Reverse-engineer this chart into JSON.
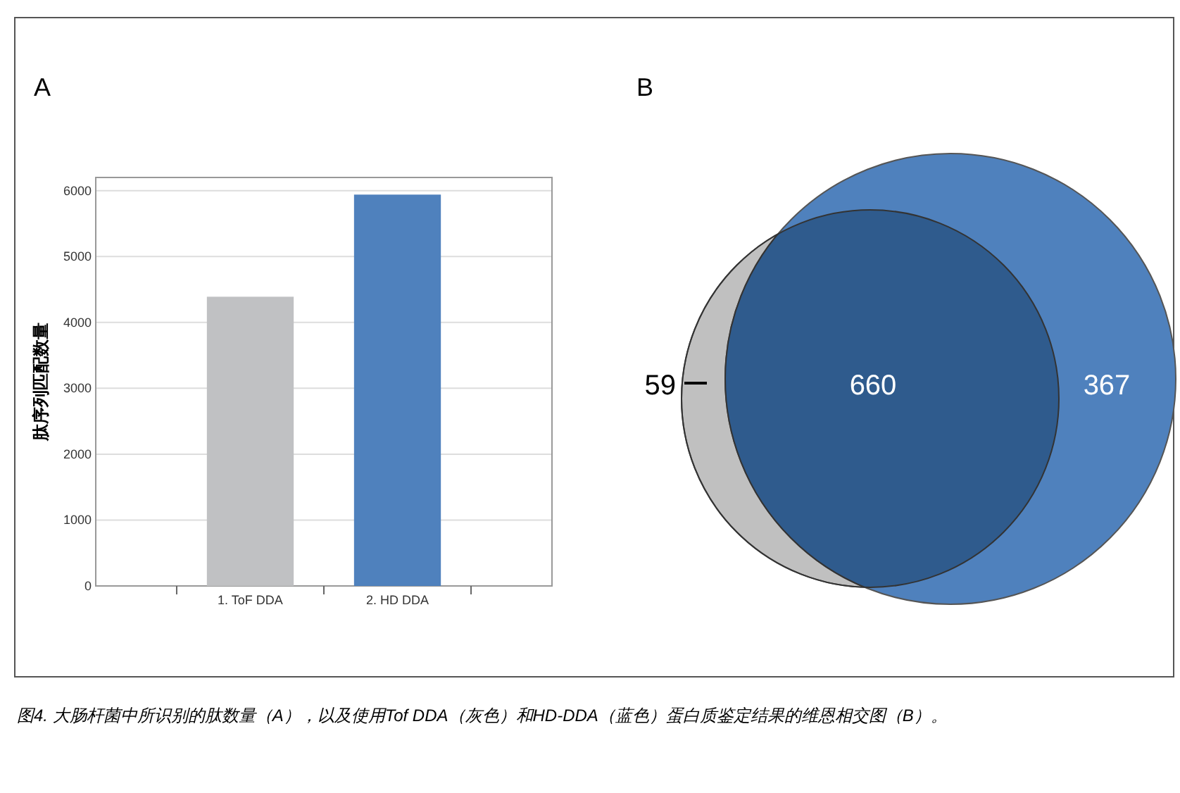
{
  "chart_data": [
    {
      "type": "bar",
      "title": "A",
      "ylabel": "肽序列匹配数量",
      "categories": [
        "1. ToF DDA",
        "2. HD DDA"
      ],
      "values": [
        4390,
        5940
      ],
      "colors": [
        "#c0c1c3",
        "#4f81bd"
      ],
      "ylim": [
        0,
        6200
      ],
      "yticks": [
        0,
        1000,
        2000,
        3000,
        4000,
        5000,
        6000
      ],
      "grid": "y",
      "annotations": [
        "图4. 大肠杆菌中所识别的肽数量（A），以及使用Tof DDA（灰色）和HD-DDA（蓝色）蛋白质鉴定结果的维恩相交图（B）。"
      ]
    },
    {
      "type": "other",
      "title": "B",
      "annotations": [
        "59",
        "660",
        "367"
      ],
      "colors": [
        "#c0c0c0",
        "#4f81bd",
        "#2f5b8d"
      ]
    }
  ]
}
